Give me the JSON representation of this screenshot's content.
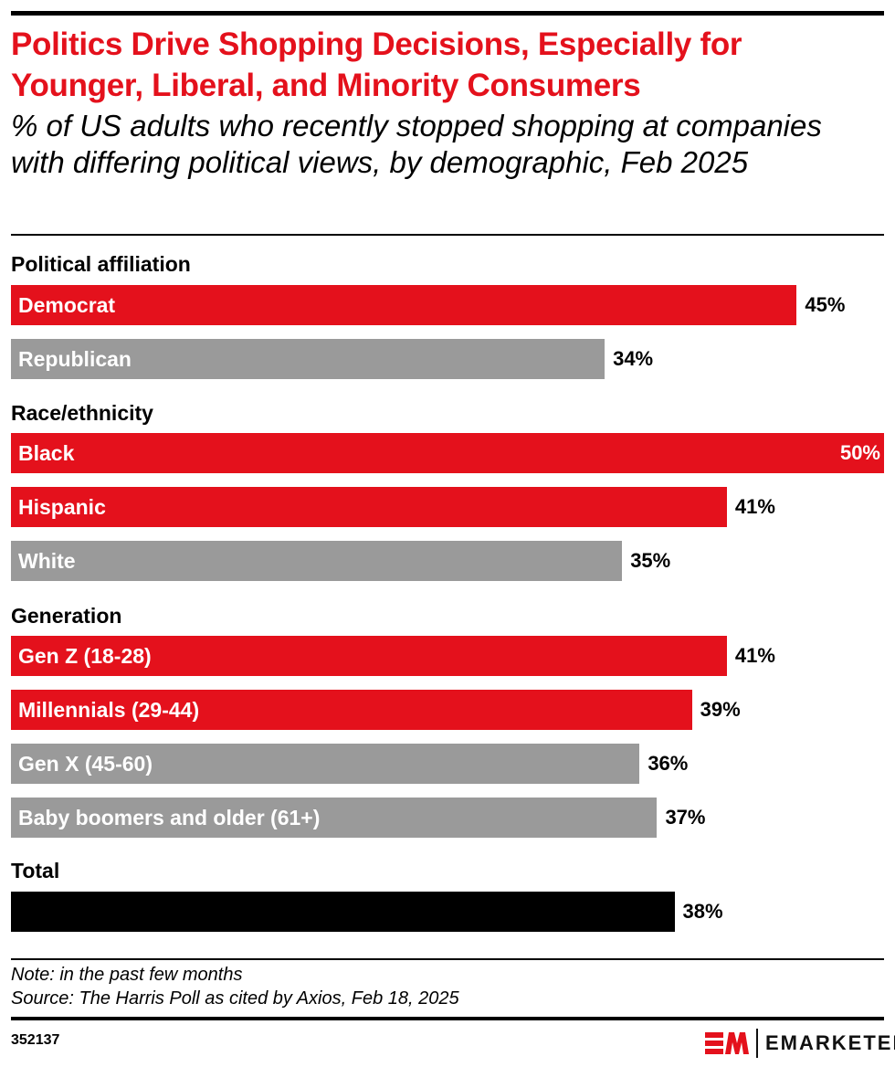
{
  "title": "Politics Drive Shopping Decisions, Especially for Younger, Liberal, and Minority Consumers",
  "subtitle": "% of US adults who recently stopped shopping at companies with differing political views, by demographic, Feb 2025",
  "colors": {
    "highlight": "#e4111c",
    "neutral": "#9a9a9a",
    "total": "#000000"
  },
  "chart_data": {
    "type": "bar",
    "orientation": "horizontal",
    "xlim": [
      0,
      50
    ],
    "groups": [
      {
        "label": "Political affiliation",
        "items": [
          {
            "label": "Democrat",
            "value": 45,
            "display": "45%",
            "color": "#e4111c"
          },
          {
            "label": "Republican",
            "value": 34,
            "display": "34%",
            "color": "#9a9a9a"
          }
        ]
      },
      {
        "label": "Race/ethnicity",
        "items": [
          {
            "label": "Black",
            "value": 50,
            "display": "50%",
            "color": "#e4111c"
          },
          {
            "label": "Hispanic",
            "value": 41,
            "display": "41%",
            "color": "#e4111c"
          },
          {
            "label": "White",
            "value": 35,
            "display": "35%",
            "color": "#9a9a9a"
          }
        ]
      },
      {
        "label": "Generation",
        "items": [
          {
            "label": "Gen Z (18-28)",
            "value": 41,
            "display": "41%",
            "color": "#e4111c"
          },
          {
            "label": "Millennials (29-44)",
            "value": 39,
            "display": "39%",
            "color": "#e4111c"
          },
          {
            "label": "Gen X (45-60)",
            "value": 36,
            "display": "36%",
            "color": "#9a9a9a"
          },
          {
            "label": "Baby boomers and older (61+)",
            "value": 37,
            "display": "37%",
            "color": "#9a9a9a"
          }
        ]
      },
      {
        "label": "Total",
        "items": [
          {
            "label": "",
            "value": 38,
            "display": "38%",
            "color": "#000000"
          }
        ]
      }
    ]
  },
  "footer": {
    "note": "Note: in the past few months",
    "source": "Source: The Harris Poll as cited by Axios, Feb 18, 2025",
    "chart_id": "352137",
    "logo_text": "EMARKETER"
  }
}
